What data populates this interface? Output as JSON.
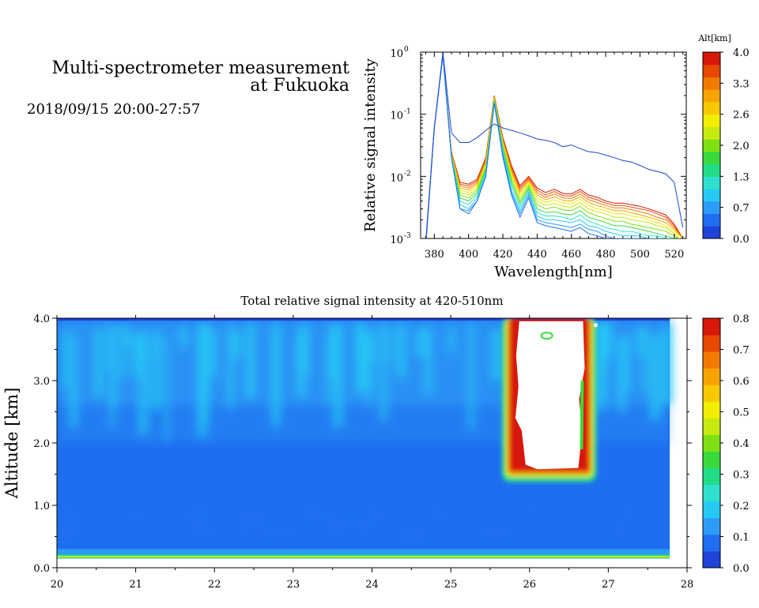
{
  "header": {
    "title_line1": "Multi-spectrometer measurement",
    "title_line2": "at Fukuoka",
    "date_range": "2018/09/15 20:00-27:57"
  },
  "colorscale": [
    "#1f43d8",
    "#1f6ef0",
    "#2d9cf6",
    "#26c8f4",
    "#2fe0d0",
    "#22dc8a",
    "#38d93a",
    "#7fe016",
    "#c8ea10",
    "#f2ee00",
    "#f8c800",
    "#f8a400",
    "#f27a00",
    "#e84800",
    "#d81808"
  ],
  "chart_data": [
    {
      "type": "line",
      "xlabel": "Wavelength[nm]",
      "ylabel": "Relative signal intensity",
      "xlim": [
        372,
        527
      ],
      "ylim": [
        0.001,
        1
      ],
      "yscale": "log",
      "x_ticks": [
        380,
        400,
        420,
        440,
        460,
        480,
        500,
        520
      ],
      "y_ticks": [
        {
          "value": 1,
          "label": "10",
          "exp": "0"
        },
        {
          "value": 0.1,
          "label": "10",
          "exp": "-1"
        },
        {
          "value": 0.01,
          "label": "10",
          "exp": "-2"
        },
        {
          "value": 0.001,
          "label": "10",
          "exp": "-3"
        }
      ],
      "colorbar": {
        "title": "Alt[km]",
        "ticks": [
          "4.0",
          "3.3",
          "2.6",
          "2.0",
          "1.3",
          "0.7",
          "0.0"
        ],
        "range": [
          0,
          4
        ]
      },
      "x": [
        375,
        380,
        385,
        390,
        395,
        400,
        405,
        410,
        415,
        420,
        425,
        430,
        435,
        440,
        445,
        450,
        455,
        460,
        465,
        470,
        475,
        480,
        485,
        490,
        495,
        500,
        505,
        510,
        515,
        520,
        525
      ],
      "series": [
        {
          "alt": 0.0,
          "values": [
            0.0009,
            0.06,
            1.0,
            0.05,
            0.035,
            0.035,
            0.042,
            0.055,
            0.07,
            0.06,
            0.055,
            0.05,
            0.045,
            0.04,
            0.038,
            0.035,
            0.03,
            0.032,
            0.028,
            0.025,
            0.024,
            0.022,
            0.02,
            0.018,
            0.017,
            0.015,
            0.013,
            0.012,
            0.011,
            0.008,
            0.0015
          ]
        },
        {
          "alt": 0.3,
          "values": [
            0.0008,
            0.06,
            0.9,
            0.02,
            0.003,
            0.0025,
            0.004,
            0.01,
            0.15,
            0.02,
            0.005,
            0.0022,
            0.0045,
            0.0018,
            0.0016,
            0.0015,
            0.0014,
            0.0013,
            0.0015,
            0.0012,
            0.0011,
            0.001,
            0.0009,
            0.0009,
            0.0009,
            0.0009,
            0.0009,
            0.0009,
            0.0009,
            0.0009,
            0.0009
          ]
        },
        {
          "alt": 0.7,
          "values": [
            0.0008,
            0.06,
            0.9,
            0.02,
            0.003,
            0.0028,
            0.004,
            0.01,
            0.15,
            0.022,
            0.0055,
            0.0025,
            0.005,
            0.002,
            0.0018,
            0.0017,
            0.0016,
            0.0015,
            0.0017,
            0.0014,
            0.0013,
            0.0011,
            0.001,
            0.001,
            0.001,
            0.001,
            0.0009,
            0.0009,
            0.0009,
            0.0009,
            0.0009
          ]
        },
        {
          "alt": 1.0,
          "values": [
            0.0008,
            0.06,
            0.9,
            0.02,
            0.0035,
            0.003,
            0.0045,
            0.011,
            0.16,
            0.024,
            0.006,
            0.0028,
            0.0055,
            0.0023,
            0.002,
            0.002,
            0.0019,
            0.0018,
            0.002,
            0.0016,
            0.0015,
            0.0013,
            0.0012,
            0.0011,
            0.0011,
            0.0011,
            0.001,
            0.001,
            0.001,
            0.0009,
            0.0009
          ]
        },
        {
          "alt": 1.3,
          "values": [
            0.0008,
            0.06,
            0.9,
            0.021,
            0.004,
            0.0035,
            0.005,
            0.012,
            0.16,
            0.026,
            0.007,
            0.0032,
            0.006,
            0.0026,
            0.0023,
            0.0023,
            0.0022,
            0.002,
            0.0024,
            0.0019,
            0.0017,
            0.0015,
            0.0014,
            0.0013,
            0.0013,
            0.0012,
            0.0011,
            0.0011,
            0.001,
            0.001,
            0.0009
          ]
        },
        {
          "alt": 1.7,
          "values": [
            0.0008,
            0.06,
            0.9,
            0.021,
            0.0045,
            0.004,
            0.0055,
            0.013,
            0.17,
            0.028,
            0.008,
            0.0036,
            0.0065,
            0.003,
            0.0026,
            0.0027,
            0.0025,
            0.0024,
            0.0028,
            0.0022,
            0.002,
            0.0018,
            0.0016,
            0.0016,
            0.0015,
            0.0014,
            0.0013,
            0.0012,
            0.0011,
            0.001,
            0.0009
          ]
        },
        {
          "alt": 2.0,
          "values": [
            0.0008,
            0.06,
            0.9,
            0.022,
            0.005,
            0.0045,
            0.006,
            0.014,
            0.17,
            0.03,
            0.009,
            0.004,
            0.007,
            0.0035,
            0.003,
            0.0032,
            0.0029,
            0.0028,
            0.0033,
            0.0026,
            0.0023,
            0.0021,
            0.0019,
            0.0019,
            0.0017,
            0.0016,
            0.0015,
            0.0014,
            0.0013,
            0.0011,
            0.0009
          ]
        },
        {
          "alt": 2.3,
          "values": [
            0.0008,
            0.06,
            0.9,
            0.022,
            0.0055,
            0.005,
            0.0065,
            0.015,
            0.18,
            0.032,
            0.01,
            0.0045,
            0.0075,
            0.004,
            0.0034,
            0.0037,
            0.0033,
            0.0032,
            0.0038,
            0.003,
            0.0027,
            0.0025,
            0.0022,
            0.0022,
            0.002,
            0.0019,
            0.0018,
            0.0016,
            0.0015,
            0.0012,
            0.0009
          ]
        },
        {
          "alt": 2.6,
          "values": [
            0.0008,
            0.06,
            0.9,
            0.023,
            0.006,
            0.0055,
            0.007,
            0.016,
            0.18,
            0.034,
            0.011,
            0.005,
            0.008,
            0.0045,
            0.0038,
            0.0042,
            0.0037,
            0.0036,
            0.0043,
            0.0034,
            0.003,
            0.0028,
            0.0025,
            0.0025,
            0.0023,
            0.0022,
            0.002,
            0.0018,
            0.0016,
            0.0013,
            0.001
          ]
        },
        {
          "alt": 3.0,
          "values": [
            0.0008,
            0.06,
            0.9,
            0.023,
            0.0065,
            0.006,
            0.0075,
            0.017,
            0.19,
            0.036,
            0.012,
            0.0055,
            0.0085,
            0.005,
            0.0042,
            0.0047,
            0.0041,
            0.004,
            0.0047,
            0.0038,
            0.0034,
            0.0031,
            0.0028,
            0.0028,
            0.0026,
            0.0024,
            0.0022,
            0.002,
            0.0018,
            0.0014,
            0.001
          ]
        },
        {
          "alt": 3.3,
          "values": [
            0.0008,
            0.06,
            0.9,
            0.024,
            0.007,
            0.0065,
            0.008,
            0.018,
            0.19,
            0.038,
            0.013,
            0.006,
            0.009,
            0.0055,
            0.0046,
            0.0052,
            0.0045,
            0.0044,
            0.0052,
            0.0042,
            0.0038,
            0.0034,
            0.0031,
            0.0031,
            0.0029,
            0.0027,
            0.0025,
            0.0022,
            0.002,
            0.0015,
            0.001
          ]
        },
        {
          "alt": 3.7,
          "values": [
            0.0008,
            0.06,
            0.9,
            0.024,
            0.0075,
            0.007,
            0.0085,
            0.019,
            0.2,
            0.04,
            0.014,
            0.0065,
            0.0095,
            0.006,
            0.005,
            0.0057,
            0.0049,
            0.0048,
            0.0057,
            0.0046,
            0.0042,
            0.0037,
            0.0034,
            0.0034,
            0.0032,
            0.003,
            0.0028,
            0.0025,
            0.0022,
            0.0016,
            0.001
          ]
        },
        {
          "alt": 4.0,
          "values": [
            0.0008,
            0.06,
            0.9,
            0.025,
            0.008,
            0.0075,
            0.009,
            0.02,
            0.2,
            0.042,
            0.015,
            0.007,
            0.01,
            0.0065,
            0.0055,
            0.0062,
            0.0053,
            0.0052,
            0.0062,
            0.005,
            0.0046,
            0.004,
            0.0037,
            0.0037,
            0.0035,
            0.0033,
            0.003,
            0.0027,
            0.0024,
            0.0017,
            0.001
          ]
        }
      ]
    },
    {
      "type": "heatmap",
      "title": "Total relative signal intensity at 420-510nm",
      "xlabel": "",
      "ylabel": "Altitude [km]",
      "xlim": [
        20,
        28
      ],
      "ylim": [
        0,
        4.0
      ],
      "x_ticks": [
        "20",
        "21",
        "22",
        "23",
        "24",
        "25",
        "26",
        "27",
        "28"
      ],
      "y_ticks": [
        "0.0",
        "1.0",
        "2.0",
        "3.0",
        "4.0"
      ],
      "colorbar": {
        "range": [
          0,
          0.8
        ],
        "ticks": [
          "0.8",
          "0.7",
          "0.6",
          "0.5",
          "0.4",
          "0.3",
          "0.2",
          "0.1",
          "0.0"
        ]
      },
      "data_end_x": 27.78,
      "data_bottom_y": 0.15,
      "background_level": 0.06,
      "upper_level": 0.13,
      "surface_band": {
        "y": [
          0.15,
          0.3
        ],
        "value": 0.3
      },
      "saturated_region": {
        "x": [
          25.75,
          26.75
        ],
        "y": [
          1.55,
          4.0
        ],
        "value": "> 0.8"
      }
    }
  ]
}
